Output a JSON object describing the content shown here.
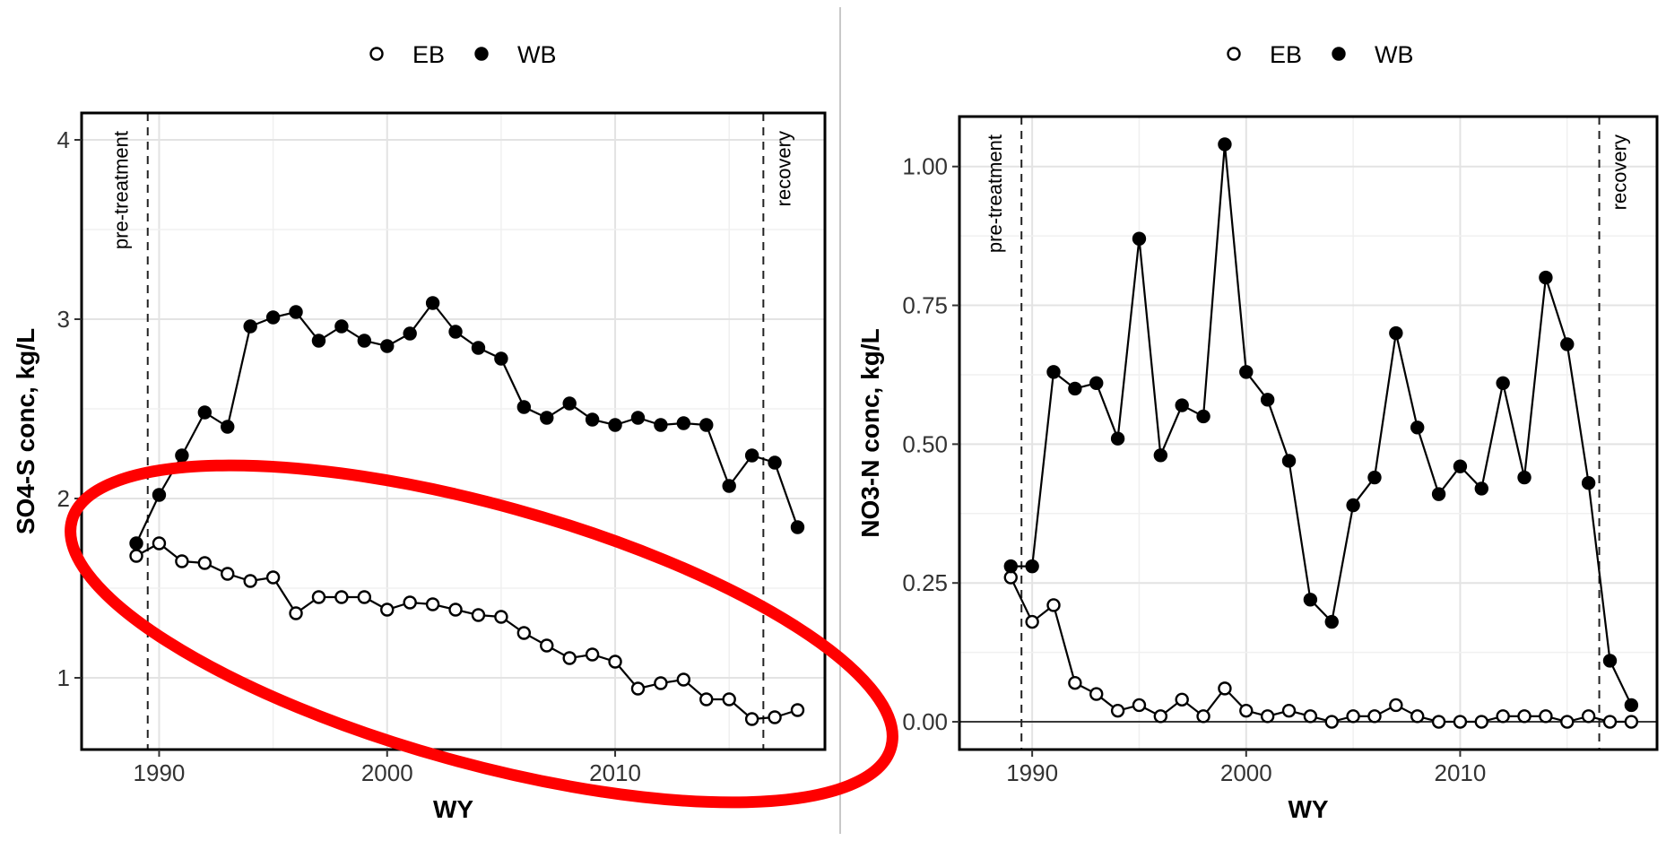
{
  "chart_data": [
    {
      "type": "line",
      "xlabel": "WY",
      "ylabel": "SO4-S conc, kg/L",
      "xlim": [
        1986.6,
        2019.2
      ],
      "ylim": [
        0.6,
        4.15
      ],
      "xticks": [
        "1990",
        "2000",
        "2010"
      ],
      "yticks": [
        "1",
        "2",
        "3",
        "4"
      ],
      "grid": true,
      "legend": {
        "position": "top",
        "entries": [
          "EB",
          "WB"
        ]
      },
      "annotations": {
        "pre": "pre-treatment",
        "recovery": "recovery"
      },
      "vlines": [
        1989.5,
        2016.5
      ],
      "x": [
        1989,
        1990,
        1991,
        1992,
        1993,
        1994,
        1995,
        1996,
        1997,
        1998,
        1999,
        2000,
        2001,
        2002,
        2003,
        2004,
        2005,
        2006,
        2007,
        2008,
        2009,
        2010,
        2011,
        2012,
        2013,
        2014,
        2015,
        2016,
        2017,
        2018
      ],
      "series": [
        {
          "name": "EB",
          "marker": "open",
          "values": [
            1.68,
            1.75,
            1.65,
            1.64,
            1.58,
            1.54,
            1.56,
            1.36,
            1.45,
            1.45,
            1.45,
            1.38,
            1.42,
            1.41,
            1.38,
            1.35,
            1.34,
            1.25,
            1.18,
            1.11,
            1.13,
            1.09,
            0.94,
            0.97,
            0.99,
            0.88,
            0.88,
            0.77,
            0.78,
            0.82
          ]
        },
        {
          "name": "WB",
          "marker": "filled",
          "values": [
            1.75,
            2.02,
            2.24,
            2.48,
            2.4,
            2.96,
            3.01,
            3.04,
            2.88,
            2.96,
            2.88,
            2.85,
            2.92,
            3.09,
            2.93,
            2.84,
            2.78,
            2.51,
            2.45,
            2.53,
            2.44,
            2.41,
            2.45,
            2.41,
            2.42,
            2.41,
            2.07,
            2.24,
            2.2,
            1.84
          ]
        }
      ],
      "highlight": {
        "shape": "ellipse",
        "color": "#ff0000"
      }
    },
    {
      "type": "line",
      "xlabel": "WY",
      "ylabel": "NO3-N conc, kg/L",
      "xlim": [
        1986.6,
        2019.2
      ],
      "ylim": [
        -0.05,
        1.09
      ],
      "xticks": [
        "1990",
        "2000",
        "2010"
      ],
      "yticks": [
        "0.00",
        "0.25",
        "0.50",
        "0.75",
        "1.00"
      ],
      "grid": true,
      "hline": 0,
      "legend": {
        "position": "top",
        "entries": [
          "EB",
          "WB"
        ]
      },
      "annotations": {
        "pre": "pre-treatment",
        "recovery": "recovery"
      },
      "vlines": [
        1989.5,
        2016.5
      ],
      "x": [
        1989,
        1990,
        1991,
        1992,
        1993,
        1994,
        1995,
        1996,
        1997,
        1998,
        1999,
        2000,
        2001,
        2002,
        2003,
        2004,
        2005,
        2006,
        2007,
        2008,
        2009,
        2010,
        2011,
        2012,
        2013,
        2014,
        2015,
        2016,
        2017,
        2018
      ],
      "series": [
        {
          "name": "EB",
          "marker": "open",
          "values": [
            0.26,
            0.18,
            0.21,
            0.07,
            0.05,
            0.02,
            0.03,
            0.01,
            0.04,
            0.01,
            0.06,
            0.02,
            0.01,
            0.02,
            0.01,
            0.0,
            0.01,
            0.01,
            0.03,
            0.01,
            0.0,
            0.0,
            0.0,
            0.01,
            0.01,
            0.01,
            0.0,
            0.01,
            0.0,
            0.0
          ]
        },
        {
          "name": "WB",
          "marker": "filled",
          "values": [
            0.28,
            0.28,
            0.63,
            0.6,
            0.61,
            0.51,
            0.87,
            0.48,
            0.57,
            0.55,
            1.04,
            0.63,
            0.58,
            0.47,
            0.22,
            0.18,
            0.39,
            0.44,
            0.7,
            0.53,
            0.41,
            0.46,
            0.42,
            0.61,
            0.44,
            0.8,
            0.68,
            0.43,
            0.11,
            0.03
          ]
        }
      ]
    }
  ]
}
